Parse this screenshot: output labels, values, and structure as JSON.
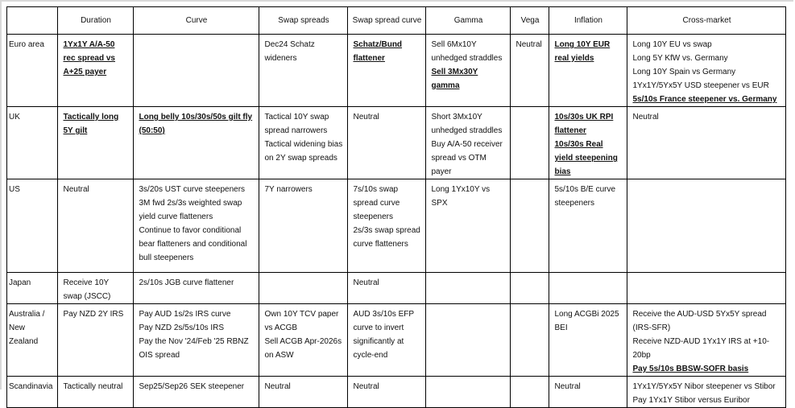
{
  "table": {
    "headers": [
      "",
      "Duration",
      "Curve",
      "Swap spreads",
      "Swap spread curve",
      "Gamma",
      "Vega",
      "Inflation",
      "Cross-market"
    ],
    "rows": [
      {
        "region": "Euro area",
        "cells": [
          [
            {
              "text": "1Yx1Y A/A-50 rec spread vs A+25 payer",
              "bold": true
            }
          ],
          [],
          [
            {
              "text": "Dec24 Schatz wideners",
              "bold": false
            }
          ],
          [
            {
              "text": "Schatz/Bund flattener",
              "bold": true
            }
          ],
          [
            {
              "text": "Sell 6Mx10Y unhedged straddles",
              "bold": false
            },
            {
              "text": "Sell 3Mx30Y gamma",
              "bold": true
            }
          ],
          [
            {
              "text": "Neutral",
              "bold": false
            }
          ],
          [
            {
              "text": "Long 10Y EUR real yields",
              "bold": true
            }
          ],
          [
            {
              "text": "Long 10Y EU vs swap",
              "bold": false
            },
            {
              "text": "Long 5Y KfW vs. Germany",
              "bold": false
            },
            {
              "text": "Long 10Y Spain vs Germany",
              "bold": false
            },
            {
              "text": "1Yx1Y/5Yx5Y USD steepener vs EUR",
              "bold": false
            },
            {
              "text": "5s/10s France steepener vs. Germany",
              "bold": true
            }
          ]
        ]
      },
      {
        "region": "UK",
        "cells": [
          [
            {
              "text": "Tactically long 5Y gilt",
              "bold": true
            }
          ],
          [
            {
              "text": "Long belly 10s/30s/50s gilt fly (50:50)",
              "bold": true
            }
          ],
          [
            {
              "text": "Tactical 10Y swap spread narrowers",
              "bold": false
            },
            {
              "text": "Tactical widening bias on 2Y swap spreads",
              "bold": false
            }
          ],
          [
            {
              "text": "Neutral",
              "bold": false
            }
          ],
          [
            {
              "text": "Short 3Mx10Y unhedged straddles",
              "bold": false
            },
            {
              "text": "Buy A/A-50 receiver spread vs OTM payer",
              "bold": false
            }
          ],
          [],
          [
            {
              "text": "10s/30s UK RPI flattener",
              "bold": true
            },
            {
              "text": "10s/30s Real yield steepening bias",
              "bold": true
            }
          ],
          [
            {
              "text": "Neutral",
              "bold": false
            }
          ]
        ]
      },
      {
        "region": "US",
        "cells": [
          [
            {
              "text": "Neutral",
              "bold": false
            }
          ],
          [
            {
              "text": "3s/20s UST curve steepeners",
              "bold": false
            },
            {
              "text": "3M fwd 2s/3s weighted swap yield curve flatteners",
              "bold": false
            },
            {
              "text": "Continue to favor conditional bear flatteners and conditional bull steepeners",
              "bold": false
            }
          ],
          [
            {
              "text": "7Y narrowers",
              "bold": false
            }
          ],
          [
            {
              "text": "7s/10s swap spread curve steepeners",
              "bold": false
            },
            {
              "text": "2s/3s swap spread curve flatteners",
              "bold": false
            }
          ],
          [
            {
              "text": "Long 1Yx10Y vs SPX",
              "bold": false
            }
          ],
          [],
          [
            {
              "text": "5s/10s B/E curve steepeners",
              "bold": false
            }
          ],
          []
        ]
      },
      {
        "region": "Japan",
        "cells": [
          [
            {
              "text": "Receive 10Y swap (JSCC)",
              "bold": false
            }
          ],
          [
            {
              "text": "2s/10s JGB curve flattener",
              "bold": false
            }
          ],
          [],
          [
            {
              "text": "Neutral",
              "bold": false
            }
          ],
          [],
          [],
          [],
          []
        ]
      },
      {
        "region": "Australia / New Zealand",
        "cells": [
          [
            {
              "text": "Pay NZD 2Y IRS",
              "bold": false
            }
          ],
          [
            {
              "text": "Pay AUD 1s/2s IRS curve",
              "bold": false
            },
            {
              "text": "Pay NZD 2s/5s/10s IRS",
              "bold": false
            },
            {
              "text": "Pay the Nov '24/Feb '25 RBNZ OIS spread",
              "bold": false
            }
          ],
          [
            {
              "text": "Own 10Y TCV paper vs ACGB",
              "bold": false
            },
            {
              "text": "Sell ACGB Apr-2026s on ASW",
              "bold": false
            }
          ],
          [
            {
              "text": "AUD 3s/10s EFP curve to invert significantly at cycle-end",
              "bold": false
            }
          ],
          [],
          [],
          [
            {
              "text": "Long ACGBi 2025 BEI",
              "bold": false
            }
          ],
          [
            {
              "text": "Receive the AUD-USD 5Yx5Y spread (IRS-SFR)",
              "bold": false
            },
            {
              "text": "Receive NZD-AUD 1Yx1Y IRS at +10-20bp",
              "bold": false
            },
            {
              "text": "Pay 5s/10s BBSW-SOFR basis",
              "bold": true
            }
          ]
        ]
      },
      {
        "region": "Scandinavia",
        "cells": [
          [
            {
              "text": "Tactically neutral",
              "bold": false
            }
          ],
          [
            {
              "text": "Sep25/Sep26 SEK steepener",
              "bold": false
            }
          ],
          [
            {
              "text": "Neutral",
              "bold": false
            }
          ],
          [
            {
              "text": "Neutral",
              "bold": false
            }
          ],
          [],
          [],
          [
            {
              "text": "Neutral",
              "bold": false
            }
          ],
          [
            {
              "text": "1Yx1Y/5Yx5Y Nibor steepener vs Stibor",
              "bold": false
            },
            {
              "text": "Pay 1Yx1Y Stibor versus Euribor",
              "bold": false
            }
          ]
        ]
      }
    ]
  }
}
